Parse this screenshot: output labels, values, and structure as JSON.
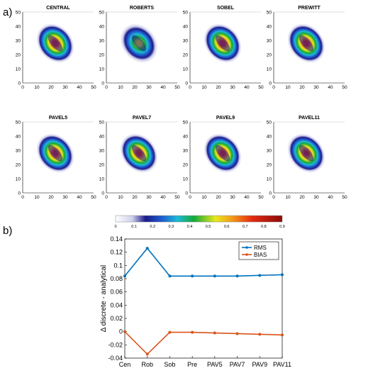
{
  "panels": {
    "a_label": "a)",
    "b_label": "b)"
  },
  "chart_data": [
    {
      "type": "heatmap",
      "titles": [
        "CENTRAL",
        "ROBERTS",
        "SOBEL",
        "PREWITT",
        "PAVEL5",
        "PAVEL7",
        "PAVEL9",
        "PAVEL11"
      ],
      "xlim": [
        0,
        50
      ],
      "ylim": [
        0,
        50
      ],
      "xticks": [
        0,
        10,
        20,
        30,
        40,
        50
      ],
      "yticks": [
        0,
        10,
        20,
        30,
        40,
        50
      ],
      "peak_values": [
        0.85,
        0.62,
        0.85,
        0.85,
        0.84,
        0.84,
        0.84,
        0.83
      ],
      "colorbar": {
        "ticks": [
          "0",
          "0.1",
          "0.2",
          "0.3",
          "0.4",
          "0.5",
          "0.6",
          "0.7",
          "0.8",
          "0.9"
        ],
        "range": [
          0,
          0.9
        ]
      }
    },
    {
      "type": "line",
      "categories": [
        "Cen",
        "Rob",
        "Sob",
        "Pre",
        "PAV5",
        "PAV7",
        "PAV9",
        "PAV11"
      ],
      "ylabel": "Δ discrete - analytical",
      "ylim": [
        -0.04,
        0.14
      ],
      "yticks": [
        "-0.04",
        "-0.02",
        "0",
        "0.02",
        "0.04",
        "0.06",
        "0.08",
        "0.1",
        "0.12",
        "0.14"
      ],
      "legend_position": "top-right",
      "series": [
        {
          "name": "RMS",
          "color": "#0072bd",
          "values": [
            0.084,
            0.126,
            0.084,
            0.084,
            0.084,
            0.084,
            0.085,
            0.086
          ]
        },
        {
          "name": "BIAS",
          "color": "#d95319",
          "values": [
            0.0,
            -0.034,
            -0.001,
            -0.001,
            -0.002,
            -0.003,
            -0.004,
            -0.005
          ]
        }
      ]
    }
  ]
}
